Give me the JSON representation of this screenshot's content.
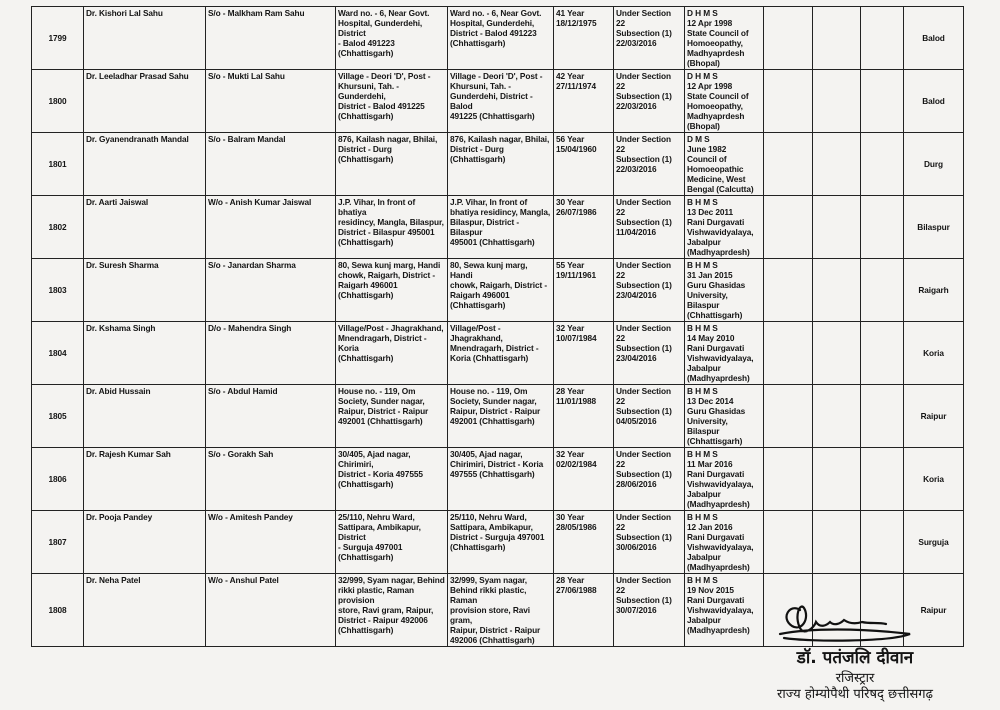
{
  "rows": [
    {
      "sno": "1799",
      "name": "Dr. Kishori Lal Sahu",
      "relation": "S/o - Malkham Ram Sahu",
      "address": "Ward no. - 6, Near Govt.\nHospital, Gunderdehi, District\n- Balod 491223\n(Chhattisgarh)",
      "address2": "Ward no. - 6, Near Govt.\nHospital, Gunderdehi,\nDistrict - Balod 491223\n(Chhattisgarh)",
      "age_dob": "41 Year\n18/12/1975",
      "section": "Under Section 22\nSubsection (1)\n22/03/2016",
      "qualification": "D H M S\n12 Apr 1998\nState Council of\nHomoeopathy,\nMadhyaprdesh\n(Bhopal)",
      "district": "Balod"
    },
    {
      "sno": "1800",
      "name": "Dr. Leeladhar Prasad Sahu",
      "relation": "S/o - Mukti Lal Sahu",
      "address": "Village - Deori 'D', Post -\nKhursuni, Tah. - Gunderdehi,\nDistrict - Balod 491225\n(Chhattisgarh)",
      "address2": "Village - Deori 'D', Post -\nKhursuni, Tah. -\nGunderdehi, District - Balod\n491225 (Chhattisgarh)",
      "age_dob": "42 Year\n27/11/1974",
      "section": "Under Section 22\nSubsection (1)\n22/03/2016",
      "qualification": "D H M S\n12 Apr 1998\nState Council of\nHomoeopathy,\nMadhyaprdesh\n(Bhopal)",
      "district": "Balod"
    },
    {
      "sno": "1801",
      "name": "Dr. Gyanendranath Mandal",
      "relation": "S/o - Balram Mandal",
      "address": "876, Kailash nagar, Bhilai,\nDistrict - Durg (Chhattisgarh)",
      "address2": "876, Kailash nagar, Bhilai,\nDistrict - Durg\n(Chhattisgarh)",
      "age_dob": "56 Year\n15/04/1960",
      "section": "Under Section 22\nSubsection (1)\n22/03/2016",
      "qualification": "D M S\nJune 1982\nCouncil of\nHomoeopathic\nMedicine,  West\nBengal   (Calcutta)",
      "district": "Durg"
    },
    {
      "sno": "1802",
      "name": "Dr. Aarti Jaiswal",
      "relation": "W/o - Anish Kumar Jaiswal",
      "address": "J.P. Vihar, In front of bhatiya\nresidincy, Mangla, Bilaspur,\nDistrict - Bilaspur 495001\n(Chhattisgarh)",
      "address2": "J.P. Vihar, In front of\nbhatiya residincy, Mangla,\nBilaspur, District - Bilaspur\n495001 (Chhattisgarh)",
      "age_dob": "30 Year\n26/07/1986",
      "section": "Under Section 22\nSubsection (1)\n11/04/2016",
      "qualification": "B H M S\n13 Dec 2011\nRani Durgavati\nVishwavidyalaya,\nJabalpur\n(Madhyaprdesh)",
      "district": "Bilaspur"
    },
    {
      "sno": "1803",
      "name": "Dr. Suresh Sharma",
      "relation": "S/o - Janardan Sharma",
      "address": "80, Sewa kunj marg, Handi\nchowk, Raigarh, District -\nRaigarh 496001\n(Chhattisgarh)",
      "address2": "80, Sewa kunj marg, Handi\nchowk, Raigarh, District -\nRaigarh 496001\n(Chhattisgarh)",
      "age_dob": "55 Year\n19/11/1961",
      "section": "Under Section 22\nSubsection (1)\n23/04/2016",
      "qualification": "B H M S\n31 Jan 2015\nGuru Ghasidas\nUniversity,  Bilaspur\n(Chhattisgarh)",
      "district": "Raigarh"
    },
    {
      "sno": "1804",
      "name": "Dr. Kshama Singh",
      "relation": "D/o - Mahendra Singh",
      "address": "Village/Post - Jhagrakhand,\nMnendragarh, District - Koria\n(Chhattisgarh)",
      "address2": "Village/Post - Jhagrakhand,\nMnendragarh, District -\nKoria (Chhattisgarh)",
      "age_dob": "32 Year\n10/07/1984",
      "section": "Under Section 22\nSubsection (1)\n23/04/2016",
      "qualification": "B H M S\n14 May 2010\nRani Durgavati\nVishwavidyalaya,\nJabalpur\n(Madhyaprdesh)",
      "district": "Koria"
    },
    {
      "sno": "1805",
      "name": "Dr. Abid Hussain",
      "relation": "S/o - Abdul Hamid",
      "address": "House no. - 119, Om\nSociety, Sunder nagar,\nRaipur, District - Raipur\n492001 (Chhattisgarh)",
      "address2": "House no. - 119, Om\nSociety, Sunder nagar,\nRaipur, District - Raipur\n492001 (Chhattisgarh)",
      "age_dob": "28 Year\n11/01/1988",
      "section": "Under Section 22\nSubsection (1)\n04/05/2016",
      "qualification": "B H M S\n13 Dec 2014\nGuru Ghasidas\nUniversity,  Bilaspur\n(Chhattisgarh)",
      "district": "Raipur"
    },
    {
      "sno": "1806",
      "name": "Dr. Rajesh Kumar Sah",
      "relation": "S/o - Gorakh Sah",
      "address": "30/405, Ajad nagar, Chirimiri,\nDistrict - Koria 497555\n(Chhattisgarh)",
      "address2": "30/405, Ajad nagar,\nChirimiri, District - Koria\n497555 (Chhattisgarh)",
      "age_dob": "32 Year\n02/02/1984",
      "section": "Under Section 22\nSubsection (1)\n28/06/2016",
      "qualification": "B H M S\n11 Mar 2016\nRani Durgavati\nVishwavidyalaya,\nJabalpur\n(Madhyaprdesh)",
      "district": "Koria"
    },
    {
      "sno": "1807",
      "name": "Dr. Pooja Pandey",
      "relation": "W/o - Amitesh Pandey",
      "address": "25/110, Nehru Ward,\nSattipara, Ambikapur, District\n- Surguja 497001\n(Chhattisgarh)",
      "address2": "25/110, Nehru Ward,\nSattipara, Ambikapur,\nDistrict - Surguja 497001\n(Chhattisgarh)",
      "age_dob": "30 Year\n28/05/1986",
      "section": "Under Section 22\nSubsection (1)\n30/06/2016",
      "qualification": "B H M S\n12 Jan 2016\nRani Durgavati\nVishwavidyalaya,\nJabalpur\n(Madhyaprdesh)",
      "district": "Surguja"
    },
    {
      "sno": "1808",
      "name": "Dr. Neha Patel",
      "relation": "   W/o - Anshul Patel",
      "address": "32/999, Syam nagar, Behind\nrikki plastic, Raman provision\nstore, Ravi gram, Raipur,\nDistrict - Raipur 492006\n(Chhattisgarh)",
      "address2": "32/999, Syam nagar,\nBehind rikki plastic, Raman\nprovision store, Ravi gram,\nRaipur, District - Raipur\n492006 (Chhattisgarh)",
      "age_dob": "28 Year\n27/06/1988",
      "section": "Under Section 22\nSubsection (1)\n30/07/2016",
      "qualification": "B H M S\n19 Nov 2015\nRani Durgavati\nVishwavidyalaya,\nJabalpur\n(Madhyaprdesh)",
      "district": "Raipur"
    }
  ],
  "signatory": {
    "name": "डॉ. पतंजलि दीवान",
    "designation": "रजिस्ट्रार",
    "organization": "राज्य होम्योपैथी परिषद् छत्तीसगढ़"
  }
}
